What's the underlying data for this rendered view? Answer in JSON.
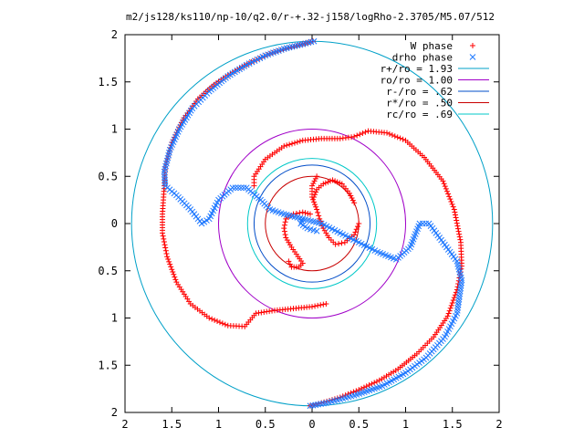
{
  "chart_data": {
    "type": "scatter",
    "title": "m2/js128/ks110/np-10/q2.0/r-+.32-j158/logRho-2.3705/M5.07/512",
    "xlabel": "",
    "ylabel": "",
    "xlim": [
      -2,
      2
    ],
    "ylim": [
      -2,
      2
    ],
    "grid": false,
    "legend_placement": "top-right",
    "x_ticks": [
      -2,
      -1.5,
      -1,
      -0.5,
      0,
      0.5,
      1,
      1.5,
      2
    ],
    "y_ticks": [
      -2,
      -1.5,
      -1,
      -0.5,
      0,
      0.5,
      1,
      1.5,
      2
    ],
    "x_tick_labels": [
      "2",
      "1.5",
      "1",
      "0.5",
      "0",
      "0.5",
      "1",
      "1.5",
      "2"
    ],
    "y_tick_labels": [
      "2",
      "1.5",
      "1",
      "0.5",
      "0",
      "0.5",
      "1",
      "1.5",
      "2"
    ],
    "series": [
      {
        "name": "W phase",
        "marker": "+",
        "color": "#ff0000",
        "arms": [
          [
            [
              0.01,
              1.93
            ],
            [
              -0.1,
              1.9
            ],
            [
              -0.25,
              1.86
            ],
            [
              -0.45,
              1.8
            ],
            [
              -0.65,
              1.71
            ],
            [
              -0.85,
              1.6
            ],
            [
              -1.05,
              1.47
            ],
            [
              -1.22,
              1.32
            ],
            [
              -1.37,
              1.12
            ],
            [
              -1.5,
              0.86
            ],
            [
              -1.57,
              0.6
            ],
            [
              -1.58,
              0.4
            ],
            [
              -1.6,
              0.1
            ],
            [
              -1.6,
              -0.1
            ],
            [
              -1.55,
              -0.35
            ],
            [
              -1.45,
              -0.62
            ],
            [
              -1.3,
              -0.85
            ],
            [
              -1.1,
              -1.0
            ],
            [
              -0.9,
              -1.08
            ],
            [
              -0.72,
              -1.09
            ],
            [
              -0.6,
              -0.95
            ],
            [
              -0.4,
              -0.92
            ],
            [
              -0.2,
              -0.9
            ],
            [
              0.0,
              -0.88
            ],
            [
              0.15,
              -0.85
            ]
          ],
          [
            [
              -0.02,
              -1.93
            ],
            [
              0.1,
              -1.9
            ],
            [
              0.3,
              -1.84
            ],
            [
              0.5,
              -1.76
            ],
            [
              0.72,
              -1.66
            ],
            [
              0.92,
              -1.54
            ],
            [
              1.12,
              -1.38
            ],
            [
              1.3,
              -1.2
            ],
            [
              1.45,
              -0.98
            ],
            [
              1.55,
              -0.7
            ],
            [
              1.6,
              -0.45
            ],
            [
              1.59,
              -0.2
            ],
            [
              1.52,
              0.15
            ],
            [
              1.4,
              0.45
            ],
            [
              1.2,
              0.7
            ],
            [
              1.0,
              0.88
            ],
            [
              0.8,
              0.96
            ],
            [
              0.6,
              0.98
            ],
            [
              0.45,
              0.92
            ],
            [
              0.3,
              0.9
            ],
            [
              0.1,
              0.9
            ],
            [
              -0.1,
              0.88
            ],
            [
              -0.3,
              0.82
            ],
            [
              -0.5,
              0.68
            ],
            [
              -0.62,
              0.5
            ],
            [
              -0.62,
              0.4
            ]
          ],
          [
            [
              -0.02,
              0.1
            ],
            [
              -0.1,
              0.12
            ],
            [
              -0.2,
              0.1
            ],
            [
              -0.28,
              0.05
            ],
            [
              -0.3,
              -0.05
            ],
            [
              -0.28,
              -0.15
            ],
            [
              -0.22,
              -0.25
            ],
            [
              -0.15,
              -0.35
            ],
            [
              -0.1,
              -0.42
            ],
            [
              -0.14,
              -0.46
            ],
            [
              -0.22,
              -0.46
            ],
            [
              -0.25,
              -0.4
            ]
          ],
          [
            [
              0.05,
              0.5
            ],
            [
              0.0,
              0.4
            ],
            [
              0.0,
              0.28
            ],
            [
              0.05,
              0.15
            ],
            [
              0.08,
              0.05
            ],
            [
              0.12,
              -0.05
            ],
            [
              0.18,
              -0.15
            ],
            [
              0.25,
              -0.22
            ],
            [
              0.35,
              -0.2
            ],
            [
              0.45,
              -0.12
            ],
            [
              0.5,
              0.0
            ]
          ],
          [
            [
              0.02,
              0.28
            ],
            [
              0.05,
              0.36
            ],
            [
              0.12,
              0.42
            ],
            [
              0.22,
              0.46
            ],
            [
              0.32,
              0.42
            ],
            [
              0.4,
              0.32
            ],
            [
              0.45,
              0.22
            ]
          ]
        ]
      },
      {
        "name": "drho phase",
        "marker": "x",
        "color": "#1e78ff",
        "arms": [
          [
            [
              0.02,
              1.93
            ],
            [
              -0.1,
              1.9
            ],
            [
              -0.3,
              1.85
            ],
            [
              -0.5,
              1.78
            ],
            [
              -0.7,
              1.68
            ],
            [
              -0.9,
              1.56
            ],
            [
              -1.1,
              1.4
            ],
            [
              -1.28,
              1.22
            ],
            [
              -1.42,
              1.0
            ],
            [
              -1.52,
              0.78
            ],
            [
              -1.58,
              0.55
            ],
            [
              -1.57,
              0.4
            ],
            [
              -1.45,
              0.3
            ],
            [
              -1.3,
              0.15
            ],
            [
              -1.18,
              0.0
            ],
            [
              -1.1,
              0.05
            ],
            [
              -1.0,
              0.25
            ],
            [
              -0.85,
              0.38
            ],
            [
              -0.7,
              0.38
            ],
            [
              -0.55,
              0.25
            ],
            [
              -0.45,
              0.15
            ],
            [
              -0.3,
              0.1
            ],
            [
              -0.1,
              0.05
            ],
            [
              0.1,
              0.0
            ],
            [
              0.3,
              -0.1
            ],
            [
              0.5,
              -0.2
            ],
            [
              0.7,
              -0.3
            ],
            [
              0.9,
              -0.38
            ],
            [
              1.05,
              -0.25
            ],
            [
              1.15,
              0.0
            ],
            [
              1.25,
              0.0
            ],
            [
              1.4,
              -0.2
            ],
            [
              1.55,
              -0.4
            ],
            [
              1.6,
              -0.6
            ],
            [
              1.55,
              -0.95
            ],
            [
              1.42,
              -1.2
            ],
            [
              1.22,
              -1.42
            ],
            [
              1.0,
              -1.58
            ],
            [
              0.75,
              -1.72
            ],
            [
              0.45,
              -1.82
            ],
            [
              0.15,
              -1.9
            ],
            [
              -0.02,
              -1.93
            ]
          ],
          [
            [
              -0.1,
              0.05
            ],
            [
              -0.12,
              0.0
            ],
            [
              -0.05,
              -0.05
            ],
            [
              0.05,
              -0.08
            ]
          ]
        ]
      }
    ],
    "circles": [
      {
        "name": "r+/ro = 1.93",
        "radius": 1.93,
        "color": "#00a0c8"
      },
      {
        "name": "ro/ro = 1.00",
        "radius": 1.0,
        "color": "#a000c8"
      },
      {
        "name": "r-/ro = .62",
        "radius": 0.62,
        "color": "#004cc8"
      },
      {
        "name": "r*/ro = .50",
        "radius": 0.5,
        "color": "#c80000"
      },
      {
        "name": "rc/ro = .69",
        "radius": 0.69,
        "color": "#00c8c8"
      }
    ]
  }
}
